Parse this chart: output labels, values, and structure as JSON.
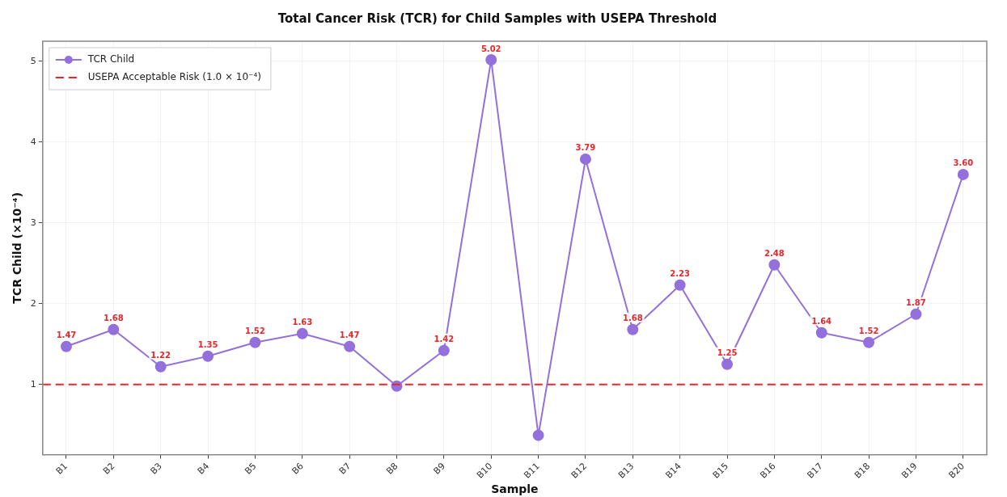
{
  "chart_data": {
    "type": "line",
    "title": "Total Cancer Risk (TCR) for Child Samples with USEPA Threshold",
    "xlabel": "Sample",
    "ylabel": "TCR Child (×10⁻⁴)",
    "categories": [
      "B1",
      "B2",
      "B3",
      "B4",
      "B5",
      "B6",
      "B7",
      "B8",
      "B9",
      "B10",
      "B11",
      "B12",
      "B13",
      "B14",
      "B15",
      "B16",
      "B17",
      "B18",
      "B19",
      "B20"
    ],
    "series": [
      {
        "name": "TCR Child",
        "color": "#9370db",
        "values": [
          1.47,
          1.68,
          1.22,
          1.35,
          1.52,
          1.63,
          1.47,
          0.98,
          1.42,
          5.02,
          0.37,
          3.79,
          1.68,
          2.23,
          1.25,
          2.48,
          1.64,
          1.52,
          1.87,
          3.6
        ],
        "value_labels": [
          "1.47",
          "1.68",
          "1.22",
          "1.35",
          "1.52",
          "1.63",
          "1.47",
          null,
          "1.42",
          "5.02",
          null,
          "3.79",
          "1.68",
          "2.23",
          "1.25",
          "2.48",
          "1.64",
          "1.52",
          "1.87",
          "3.60"
        ]
      }
    ],
    "ref_lines": [
      {
        "axis": "y",
        "value": 1,
        "label": "USEPA Acceptable Risk (1.0 × 10⁻⁴)",
        "color": "#e8262b",
        "line_style": "dashed"
      }
    ],
    "ylim": [
      0.13,
      5.25
    ],
    "yticks": [
      1,
      2,
      3,
      4,
      5
    ],
    "grid": true,
    "legend": "top left",
    "marker": "circle",
    "line_style": "solid"
  }
}
